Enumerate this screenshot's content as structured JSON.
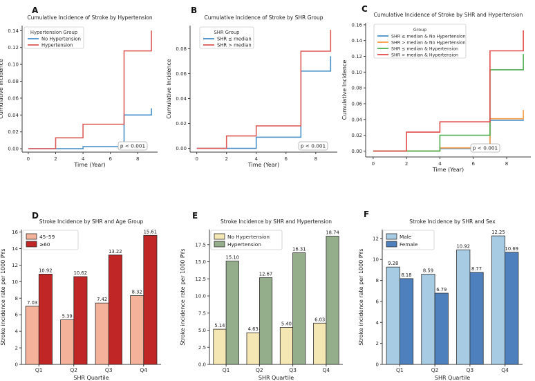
{
  "figure": {
    "background": "#ffffff",
    "p_value_text": "p < 0.001"
  },
  "chart_data": [
    {
      "panel_label": "A",
      "type": "line",
      "subtype": "step",
      "title": "Cumulative Incidence of Stroke by Hypertension",
      "xlabel": "Time (Year)",
      "ylabel": "Cumulative Incidence",
      "xlim": [
        -0.45,
        9.45
      ],
      "ylim": [
        -0.004,
        0.146
      ],
      "xticks": [
        0,
        2,
        4,
        6,
        8
      ],
      "yticks": [
        0,
        0.02,
        0.04,
        0.06,
        0.08,
        0.1,
        0.12,
        0.14
      ],
      "ytick_labels": [
        "0.00",
        "0.02",
        "0.04",
        "0.06",
        "0.08",
        "0.10",
        "0.12",
        "0.14"
      ],
      "grid": false,
      "legend_title": "Hypertension Group",
      "legend_position": "upper-left",
      "annotation": "p < 0.001",
      "series": [
        {
          "name": "No Hypertension",
          "color": "#4a90c8",
          "points": [
            [
              0,
              0
            ],
            [
              4,
              0.0025
            ],
            [
              7,
              0.04
            ],
            [
              9,
              0.048
            ]
          ]
        },
        {
          "name": "Hypertension",
          "color": "#dd5c5a",
          "points": [
            [
              0,
              0
            ],
            [
              2,
              0.013
            ],
            [
              4,
              0.029
            ],
            [
              7,
              0.116
            ],
            [
              9,
              0.14
            ]
          ]
        }
      ]
    },
    {
      "panel_label": "B",
      "type": "line",
      "subtype": "step",
      "title": "Cumulative Incidence of Stroke by SHR Group",
      "xlabel": "Time (Year)",
      "ylabel": "Cumulative Incidence",
      "xlim": [
        -0.45,
        9.45
      ],
      "ylim": [
        -0.003,
        0.0985
      ],
      "xticks": [
        0,
        2,
        4,
        6,
        8
      ],
      "yticks": [
        0,
        0.02,
        0.04,
        0.06,
        0.08
      ],
      "ytick_labels": [
        "0.00",
        "0.02",
        "0.04",
        "0.06",
        "0.08"
      ],
      "grid": false,
      "legend_title": "SHR Group",
      "legend_position": "upper-left",
      "annotation": "p < 0.001",
      "series": [
        {
          "name": "SHR ≤ median",
          "color": "#4a90c8",
          "points": [
            [
              0,
              0
            ],
            [
              4,
              0.009
            ],
            [
              7,
              0.062
            ],
            [
              9,
              0.074
            ]
          ]
        },
        {
          "name": "SHR > median",
          "color": "#dd5c5a",
          "points": [
            [
              0,
              0
            ],
            [
              2,
              0.01
            ],
            [
              4,
              0.018
            ],
            [
              7,
              0.078
            ],
            [
              9,
              0.095
            ]
          ]
        }
      ]
    },
    {
      "panel_label": "C",
      "type": "line",
      "subtype": "step",
      "title": "Cumulative Incidence of Stroke by SHR and Hypertension",
      "xlabel": "Time (Year)",
      "ylabel": "Cumulative Incidence",
      "xlim": [
        -0.45,
        9.45
      ],
      "ylim": [
        -0.0075,
        0.1625
      ],
      "xticks": [
        0,
        2,
        4,
        6,
        8
      ],
      "yticks": [
        0,
        0.02,
        0.04,
        0.06,
        0.08,
        0.1,
        0.12,
        0.14,
        0.16
      ],
      "ytick_labels": [
        "0.00",
        "0.02",
        "0.04",
        "0.06",
        "0.08",
        "0.10",
        "0.12",
        "0.14",
        "0.16"
      ],
      "grid": false,
      "legend_title": "Group",
      "legend_position": "upper-center",
      "annotation": "p < 0.001",
      "series": [
        {
          "name": "SHR ≤ median & No Hypertension",
          "color": "#4a90c8",
          "points": [
            [
              0,
              0
            ],
            [
              4,
              0.003
            ],
            [
              7,
              0.039
            ],
            [
              9,
              0.04
            ]
          ]
        },
        {
          "name": "SHR > median & No Hypertension",
          "color": "#f79a43",
          "points": [
            [
              0,
              0
            ],
            [
              4,
              0.004
            ],
            [
              7,
              0.041
            ],
            [
              9,
              0.052
            ]
          ]
        },
        {
          "name": "SHR ≤ median & Hypertension",
          "color": "#4fae50",
          "points": [
            [
              0,
              0
            ],
            [
              4,
              0.02
            ],
            [
              7,
              0.103
            ],
            [
              9,
              0.123
            ]
          ]
        },
        {
          "name": "SHR > median & Hypertension",
          "color": "#e14b49",
          "points": [
            [
              0,
              0
            ],
            [
              2,
              0.024
            ],
            [
              4,
              0.037
            ],
            [
              7,
              0.127
            ],
            [
              9,
              0.153
            ]
          ]
        }
      ]
    },
    {
      "panel_label": "D",
      "type": "bar",
      "title": "Stroke Incidence by SHR and Age Group",
      "xlabel": "SHR Quartile",
      "ylabel": "Stroke incidence rate per 1000 PYs",
      "categories": [
        "Q1",
        "Q2",
        "Q3",
        "Q4"
      ],
      "ylim": [
        0,
        16.3
      ],
      "yticks": [
        0,
        2,
        4,
        6,
        8,
        10,
        12,
        14,
        16
      ],
      "ytick_labels": [
        "0",
        "2",
        "4",
        "6",
        "8",
        "10",
        "12",
        "14",
        "16"
      ],
      "grid": false,
      "bar_edge": "#2b2b2b",
      "legend_position": "upper-left",
      "series": [
        {
          "name": "45–59",
          "color": "#f5b29a",
          "values": [
            7.03,
            5.39,
            7.42,
            8.32
          ],
          "value_labels": [
            "7.03",
            "5.39",
            "7.42",
            "8.32"
          ]
        },
        {
          "name": "≥60",
          "color": "#c02626",
          "values": [
            10.92,
            10.62,
            13.22,
            15.61
          ],
          "value_labels": [
            "10.92",
            "10.62",
            "13.22",
            "15.61"
          ]
        }
      ]
    },
    {
      "panel_label": "E",
      "type": "bar",
      "title": "Stroke Incidence by SHR and Hypertension",
      "xlabel": "SHR Quartile",
      "ylabel": "Stroke incidence rate per 1000 PYs",
      "categories": [
        "Q1",
        "Q2",
        "Q3",
        "Q4"
      ],
      "ylim": [
        0,
        19.7
      ],
      "yticks": [
        0,
        2.5,
        5,
        7.5,
        10,
        12.5,
        15,
        17.5
      ],
      "ytick_labels": [
        "0.0",
        "2.5",
        "5.0",
        "7.5",
        "10.0",
        "12.5",
        "15.0",
        "17.5"
      ],
      "grid": false,
      "bar_edge": "#2b2b2b",
      "legend_position": "upper-left",
      "series": [
        {
          "name": "No Hypertension",
          "color": "#f5e7b3",
          "values": [
            5.14,
            4.63,
            5.4,
            6.03
          ],
          "value_labels": [
            "5.14",
            "4.63",
            "5.40",
            "6.03"
          ]
        },
        {
          "name": "Hypertension",
          "color": "#94ae8c",
          "values": [
            15.1,
            12.67,
            16.31,
            18.74
          ],
          "value_labels": [
            "15.10",
            "12.67",
            "16.31",
            "18.74"
          ]
        }
      ]
    },
    {
      "panel_label": "F",
      "type": "bar",
      "title": "Stroke Incidence by SHR and Sex",
      "xlabel": "SHR Quartile",
      "ylabel": "Stroke incidence rate per 1000 PYs",
      "categories": [
        "Q1",
        "Q2",
        "Q3",
        "Q4"
      ],
      "ylim": [
        0,
        12.85
      ],
      "yticks": [
        0,
        2,
        4,
        6,
        8,
        10,
        12
      ],
      "ytick_labels": [
        "0",
        "2",
        "4",
        "6",
        "8",
        "10",
        "12"
      ],
      "grid": false,
      "bar_edge": "#2b2b2b",
      "legend_position": "upper-left",
      "series": [
        {
          "name": "Male",
          "color": "#a8cbe4",
          "values": [
            9.28,
            8.59,
            10.92,
            12.25
          ],
          "value_labels": [
            "9.28",
            "8.59",
            "10.92",
            "12.25"
          ]
        },
        {
          "name": "Female",
          "color": "#4d80bd",
          "values": [
            8.18,
            6.79,
            8.77,
            10.69
          ],
          "value_labels": [
            "8.18",
            "6.79",
            "8.77",
            "10.69"
          ]
        }
      ]
    }
  ]
}
